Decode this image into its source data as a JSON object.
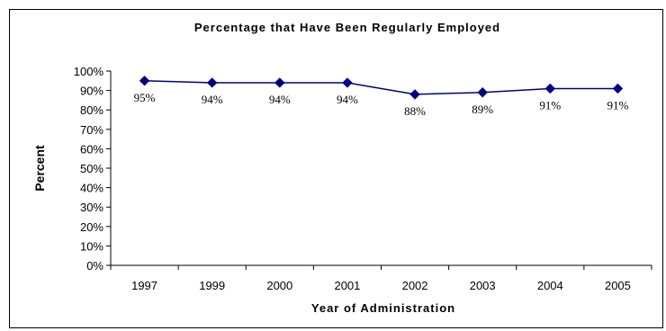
{
  "chart_data": {
    "type": "line",
    "title": "Percentage that Have Been Regularly Employed",
    "xlabel": "Year of Administration",
    "ylabel": "Percent",
    "categories": [
      "1997",
      "1999",
      "2000",
      "2001",
      "2002",
      "2003",
      "2004",
      "2005"
    ],
    "series": [
      {
        "values": [
          95,
          94,
          94,
          94,
          88,
          89,
          91,
          91
        ],
        "data_labels": [
          "95%",
          "94%",
          "94%",
          "94%",
          "88%",
          "89%",
          "91%",
          "91%"
        ],
        "color": "#000080",
        "marker": "diamond"
      }
    ],
    "ylim": [
      0,
      100
    ],
    "yticks": [
      "0%",
      "10%",
      "20%",
      "30%",
      "40%",
      "50%",
      "60%",
      "70%",
      "80%",
      "90%",
      "100%"
    ],
    "grid": false,
    "legend": "none"
  }
}
